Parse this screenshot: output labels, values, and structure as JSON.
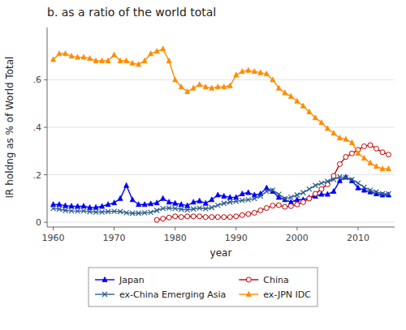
{
  "chart_data": {
    "type": "line",
    "title": "b. as a ratio of the world total",
    "x_label": "year",
    "y_label": "IR holdng as % of World Total",
    "xlim": [
      1959,
      2016
    ],
    "ylim": [
      -0.02,
      0.82
    ],
    "xticks": [
      1960,
      1970,
      1980,
      1990,
      2000,
      2010
    ],
    "yticks": [
      0,
      {
        "value": 0.2,
        "label": ".2"
      },
      {
        "value": 0.4,
        "label": ".4"
      },
      {
        "value": 0.6,
        "label": ".6"
      }
    ],
    "grid": true,
    "legend": "bottom",
    "series": [
      {
        "name": "Japan",
        "color": "#0000ff",
        "marker": "triangle",
        "x": [
          1960,
          1961,
          1962,
          1963,
          1964,
          1965,
          1966,
          1967,
          1968,
          1969,
          1970,
          1971,
          1972,
          1973,
          1974,
          1975,
          1976,
          1977,
          1978,
          1979,
          1980,
          1981,
          1982,
          1983,
          1984,
          1985,
          1986,
          1987,
          1988,
          1989,
          1990,
          1991,
          1992,
          1993,
          1994,
          1995,
          1996,
          1997,
          1998,
          1999,
          2000,
          2001,
          2002,
          2003,
          2004,
          2005,
          2006,
          2007,
          2008,
          2009,
          2010,
          2011,
          2012,
          2013,
          2014,
          2015
        ],
        "values": [
          0.075,
          0.075,
          0.07,
          0.068,
          0.067,
          0.068,
          0.062,
          0.063,
          0.067,
          0.075,
          0.082,
          0.1,
          0.155,
          0.095,
          0.075,
          0.075,
          0.078,
          0.082,
          0.1,
          0.085,
          0.08,
          0.075,
          0.07,
          0.085,
          0.09,
          0.08,
          0.095,
          0.115,
          0.11,
          0.105,
          0.105,
          0.12,
          0.125,
          0.115,
          0.12,
          0.145,
          0.13,
          0.105,
          0.095,
          0.085,
          0.095,
          0.095,
          0.103,
          0.11,
          0.118,
          0.118,
          0.13,
          0.175,
          0.19,
          0.175,
          0.145,
          0.135,
          0.128,
          0.12,
          0.115,
          0.115
        ]
      },
      {
        "name": "China",
        "color": "#c00000",
        "marker": "circle-open",
        "x": [
          1977,
          1978,
          1979,
          1980,
          1981,
          1982,
          1983,
          1984,
          1985,
          1986,
          1987,
          1988,
          1989,
          1990,
          1991,
          1992,
          1993,
          1994,
          1995,
          1996,
          1997,
          1998,
          1999,
          2000,
          2001,
          2002,
          2003,
          2004,
          2005,
          2006,
          2007,
          2008,
          2009,
          2010,
          2011,
          2012,
          2013,
          2014,
          2015
        ],
        "values": [
          0.01,
          0.015,
          0.02,
          0.025,
          0.022,
          0.025,
          0.025,
          0.025,
          0.022,
          0.022,
          0.022,
          0.022,
          0.022,
          0.025,
          0.03,
          0.035,
          0.04,
          0.05,
          0.06,
          0.07,
          0.072,
          0.065,
          0.068,
          0.075,
          0.085,
          0.1,
          0.12,
          0.14,
          0.16,
          0.195,
          0.245,
          0.275,
          0.29,
          0.305,
          0.32,
          0.325,
          0.31,
          0.295,
          0.285
        ]
      },
      {
        "name": "ex-China Emerging Asia",
        "color": "#2e5f8a",
        "marker": "x",
        "x": [
          1960,
          1961,
          1962,
          1963,
          1964,
          1965,
          1966,
          1967,
          1968,
          1969,
          1970,
          1971,
          1972,
          1973,
          1974,
          1975,
          1976,
          1977,
          1978,
          1979,
          1980,
          1981,
          1982,
          1983,
          1984,
          1985,
          1986,
          1987,
          1988,
          1989,
          1990,
          1991,
          1992,
          1993,
          1994,
          1995,
          1996,
          1997,
          1998,
          1999,
          2000,
          2001,
          2002,
          2003,
          2004,
          2005,
          2006,
          2007,
          2008,
          2009,
          2010,
          2011,
          2012,
          2013,
          2014,
          2015
        ],
        "values": [
          0.058,
          0.055,
          0.05,
          0.048,
          0.047,
          0.048,
          0.045,
          0.043,
          0.043,
          0.045,
          0.046,
          0.045,
          0.04,
          0.038,
          0.038,
          0.04,
          0.042,
          0.05,
          0.058,
          0.06,
          0.058,
          0.055,
          0.052,
          0.056,
          0.06,
          0.057,
          0.062,
          0.072,
          0.08,
          0.085,
          0.088,
          0.092,
          0.095,
          0.1,
          0.11,
          0.13,
          0.135,
          0.118,
          0.1,
          0.105,
          0.115,
          0.125,
          0.14,
          0.155,
          0.165,
          0.172,
          0.18,
          0.192,
          0.188,
          0.18,
          0.165,
          0.148,
          0.135,
          0.128,
          0.12,
          0.12
        ]
      },
      {
        "name": "ex-JPN IDC",
        "color": "#ff8c00",
        "marker": "triangle",
        "x": [
          1960,
          1961,
          1962,
          1963,
          1964,
          1965,
          1966,
          1967,
          1968,
          1969,
          1970,
          1971,
          1972,
          1973,
          1974,
          1975,
          1976,
          1977,
          1978,
          1979,
          1980,
          1981,
          1982,
          1983,
          1984,
          1985,
          1986,
          1987,
          1988,
          1989,
          1990,
          1991,
          1992,
          1993,
          1994,
          1995,
          1996,
          1997,
          1998,
          1999,
          2000,
          2001,
          2002,
          2003,
          2004,
          2005,
          2006,
          2007,
          2008,
          2009,
          2010,
          2011,
          2012,
          2013,
          2014,
          2015
        ],
        "values": [
          0.685,
          0.71,
          0.71,
          0.7,
          0.695,
          0.695,
          0.69,
          0.68,
          0.68,
          0.68,
          0.705,
          0.68,
          0.68,
          0.67,
          0.665,
          0.68,
          0.71,
          0.72,
          0.73,
          0.68,
          0.6,
          0.57,
          0.55,
          0.565,
          0.58,
          0.57,
          0.565,
          0.57,
          0.57,
          0.575,
          0.62,
          0.635,
          0.64,
          0.635,
          0.63,
          0.625,
          0.6,
          0.565,
          0.545,
          0.53,
          0.51,
          0.49,
          0.465,
          0.44,
          0.42,
          0.395,
          0.375,
          0.355,
          0.35,
          0.335,
          0.29,
          0.27,
          0.25,
          0.235,
          0.225,
          0.225
        ]
      }
    ]
  }
}
